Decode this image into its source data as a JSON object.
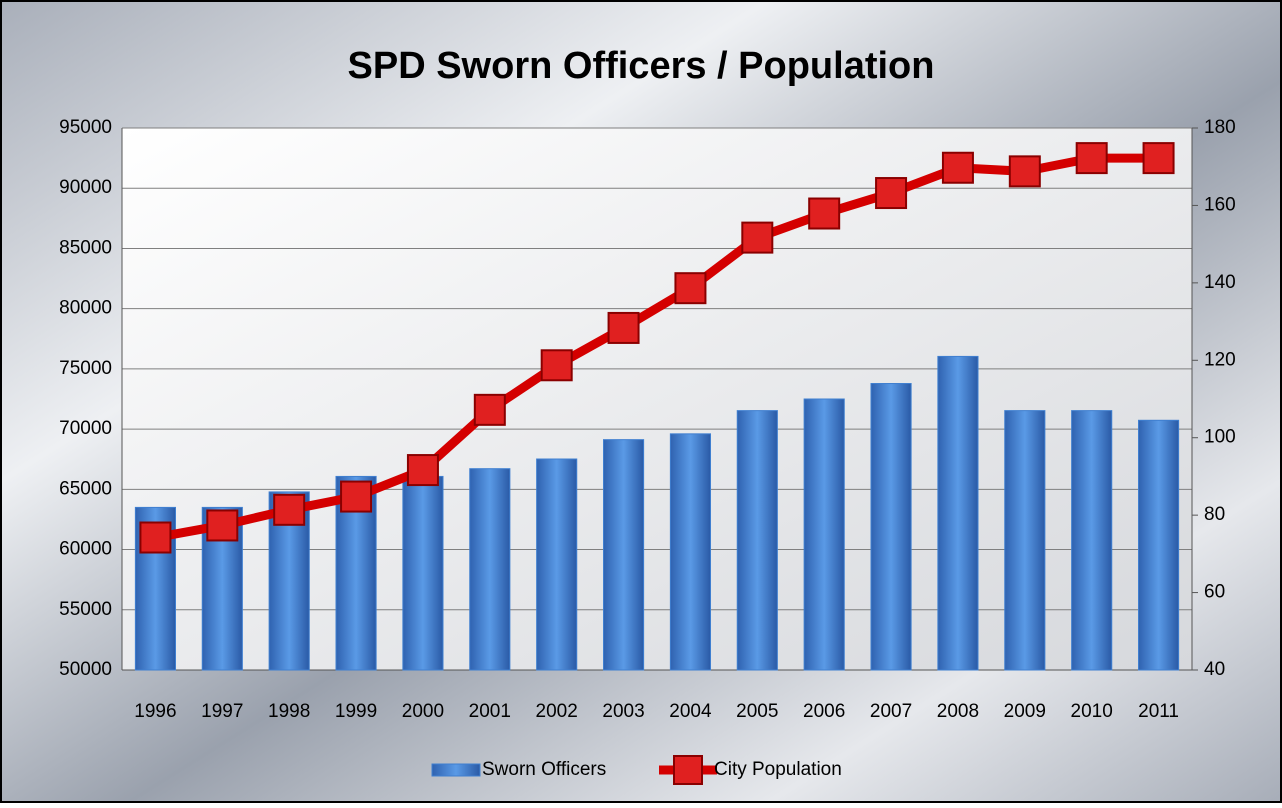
{
  "chart_data": {
    "type": "bar_line",
    "title": "SPD Sworn Officers / Population",
    "categories": [
      "1996",
      "1997",
      "1998",
      "1999",
      "2000",
      "2001",
      "2002",
      "2003",
      "2004",
      "2005",
      "2006",
      "2007",
      "2008",
      "2009",
      "2010",
      "2011"
    ],
    "series": [
      {
        "name": "Sworn Officers",
        "type": "bar",
        "axis": "y2",
        "color": "#3f7fd0",
        "values": [
          82,
          82,
          86,
          90,
          90,
          92,
          94.5,
          99.5,
          101,
          107,
          110,
          114,
          121,
          107,
          107,
          104.5
        ]
      },
      {
        "name": "City Population",
        "type": "line",
        "axis": "y",
        "color": "#d40000",
        "values": [
          61000,
          62000,
          63300,
          64400,
          66600,
          71600,
          75300,
          78400,
          81700,
          85900,
          87900,
          89600,
          91700,
          91400,
          92500,
          92500
        ]
      }
    ],
    "ylim": [
      50000,
      95000
    ],
    "yticks": [
      50000,
      55000,
      60000,
      65000,
      70000,
      75000,
      80000,
      85000,
      90000,
      95000
    ],
    "y2lim": [
      40,
      180
    ],
    "y2ticks": [
      40,
      60,
      80,
      100,
      120,
      140,
      160,
      180
    ],
    "grid": true,
    "legend": "bottom"
  }
}
